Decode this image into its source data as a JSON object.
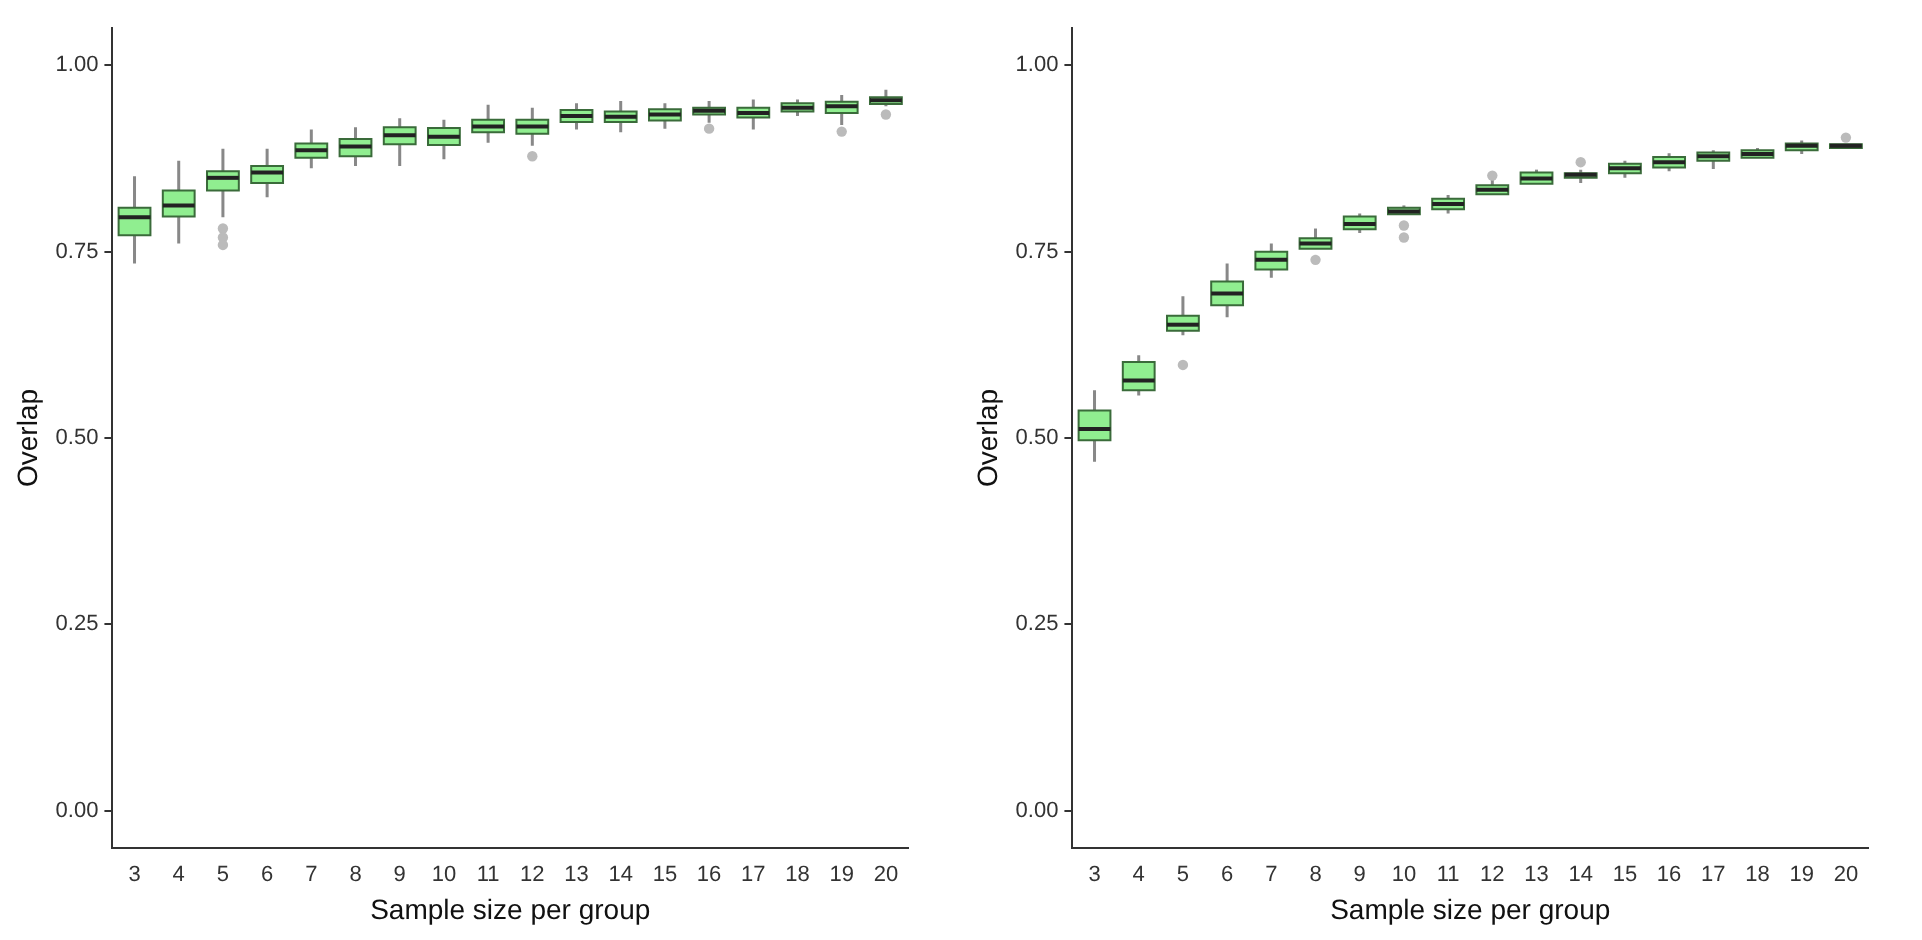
{
  "chart_data": [
    {
      "type": "box",
      "xlabel": "Sample size per group",
      "ylabel": "Overlap",
      "categories": [
        "3",
        "4",
        "5",
        "6",
        "7",
        "8",
        "9",
        "10",
        "11",
        "12",
        "13",
        "14",
        "15",
        "16",
        "17",
        "18",
        "19",
        "20"
      ],
      "ylim": [
        -0.05,
        1.05
      ],
      "yticks": [
        {
          "value": 0,
          "label": "0.00"
        },
        {
          "value": 0.25,
          "label": "0.25"
        },
        {
          "value": 0.5,
          "label": "0.50"
        },
        {
          "value": 0.75,
          "label": "0.75"
        },
        {
          "value": 1,
          "label": "1.00"
        }
      ],
      "grid": false,
      "series": [
        {
          "color": "#90ee90",
          "boxes": [
            {
              "low": 0.734,
              "q1": 0.772,
              "median": 0.796,
              "q3": 0.809,
              "high": 0.851
            },
            {
              "low": 0.761,
              "q1": 0.797,
              "median": 0.812,
              "q3": 0.832,
              "high": 0.872
            },
            {
              "low": 0.796,
              "q1": 0.832,
              "median": 0.849,
              "q3": 0.858,
              "high": 0.888,
              "outliers": [
                0.781,
                0.769,
                0.759
              ]
            },
            {
              "low": 0.823,
              "q1": 0.842,
              "median": 0.856,
              "q3": 0.865,
              "high": 0.888
            },
            {
              "low": 0.862,
              "q1": 0.876,
              "median": 0.886,
              "q3": 0.895,
              "high": 0.914
            },
            {
              "low": 0.865,
              "q1": 0.878,
              "median": 0.891,
              "q3": 0.901,
              "high": 0.917
            },
            {
              "low": 0.865,
              "q1": 0.894,
              "median": 0.906,
              "q3": 0.917,
              "high": 0.929
            },
            {
              "low": 0.874,
              "q1": 0.893,
              "median": 0.904,
              "q3": 0.916,
              "high": 0.927
            },
            {
              "low": 0.896,
              "q1": 0.91,
              "median": 0.918,
              "q3": 0.927,
              "high": 0.947
            },
            {
              "low": 0.892,
              "q1": 0.908,
              "median": 0.918,
              "q3": 0.927,
              "high": 0.943,
              "outliers": [
                0.878
              ]
            },
            {
              "low": 0.914,
              "q1": 0.924,
              "median": 0.932,
              "q3": 0.94,
              "high": 0.949
            },
            {
              "low": 0.91,
              "q1": 0.924,
              "median": 0.931,
              "q3": 0.938,
              "high": 0.952
            },
            {
              "low": 0.915,
              "q1": 0.926,
              "median": 0.934,
              "q3": 0.941,
              "high": 0.949
            },
            {
              "low": 0.923,
              "q1": 0.934,
              "median": 0.939,
              "q3": 0.943,
              "high": 0.952,
              "outliers": [
                0.915
              ]
            },
            {
              "low": 0.914,
              "q1": 0.93,
              "median": 0.936,
              "q3": 0.943,
              "high": 0.954
            },
            {
              "low": 0.932,
              "q1": 0.938,
              "median": 0.943,
              "q3": 0.949,
              "high": 0.954
            },
            {
              "low": 0.92,
              "q1": 0.936,
              "median": 0.945,
              "q3": 0.951,
              "high": 0.96,
              "outliers": [
                0.911
              ]
            },
            {
              "low": 0.945,
              "q1": 0.948,
              "median": 0.953,
              "q3": 0.957,
              "high": 0.967,
              "outliers": [
                0.934
              ]
            }
          ]
        }
      ]
    },
    {
      "type": "box",
      "xlabel": "Sample size per group",
      "ylabel": "Overlap",
      "categories": [
        "3",
        "4",
        "5",
        "6",
        "7",
        "8",
        "9",
        "10",
        "11",
        "12",
        "13",
        "14",
        "15",
        "16",
        "17",
        "18",
        "19",
        "20"
      ],
      "ylim": [
        -0.05,
        1.05
      ],
      "yticks": [
        {
          "value": 0,
          "label": "0.00"
        },
        {
          "value": 0.25,
          "label": "0.25"
        },
        {
          "value": 0.5,
          "label": "0.50"
        },
        {
          "value": 0.75,
          "label": "0.75"
        },
        {
          "value": 1,
          "label": "1.00"
        }
      ],
      "grid": false,
      "series": [
        {
          "color": "#90ee90",
          "boxes": [
            {
              "low": 0.468,
              "q1": 0.497,
              "median": 0.512,
              "q3": 0.537,
              "high": 0.564
            },
            {
              "low": 0.557,
              "q1": 0.564,
              "median": 0.577,
              "q3": 0.602,
              "high": 0.611
            },
            {
              "low": 0.638,
              "q1": 0.644,
              "median": 0.652,
              "q3": 0.664,
              "high": 0.69,
              "outliers": [
                0.598
              ]
            },
            {
              "low": 0.662,
              "q1": 0.678,
              "median": 0.694,
              "q3": 0.71,
              "high": 0.734
            },
            {
              "low": 0.715,
              "q1": 0.726,
              "median": 0.739,
              "q3": 0.75,
              "high": 0.761
            },
            {
              "low": 0.754,
              "q1": 0.754,
              "median": 0.761,
              "q3": 0.768,
              "high": 0.781,
              "outliers": [
                0.739
              ]
            },
            {
              "low": 0.775,
              "q1": 0.78,
              "median": 0.787,
              "q3": 0.797,
              "high": 0.801
            },
            {
              "low": 0.8,
              "q1": 0.8,
              "median": 0.804,
              "q3": 0.809,
              "high": 0.812,
              "outliers": [
                0.785,
                0.769
              ]
            },
            {
              "low": 0.801,
              "q1": 0.807,
              "median": 0.814,
              "q3": 0.821,
              "high": 0.826
            },
            {
              "low": 0.827,
              "q1": 0.827,
              "median": 0.833,
              "q3": 0.839,
              "high": 0.848,
              "outliers": [
                0.852
              ]
            },
            {
              "low": 0.841,
              "q1": 0.841,
              "median": 0.848,
              "q3": 0.856,
              "high": 0.86
            },
            {
              "low": 0.842,
              "q1": 0.849,
              "median": 0.853,
              "q3": 0.855,
              "high": 0.86,
              "outliers": [
                0.87
              ]
            },
            {
              "low": 0.849,
              "q1": 0.855,
              "median": 0.862,
              "q3": 0.868,
              "high": 0.872
            },
            {
              "low": 0.858,
              "q1": 0.863,
              "median": 0.87,
              "q3": 0.877,
              "high": 0.882
            },
            {
              "low": 0.861,
              "q1": 0.872,
              "median": 0.878,
              "q3": 0.883,
              "high": 0.886
            },
            {
              "low": 0.876,
              "q1": 0.876,
              "median": 0.881,
              "q3": 0.886,
              "high": 0.889
            },
            {
              "low": 0.881,
              "q1": 0.886,
              "median": 0.892,
              "q3": 0.895,
              "high": 0.899
            },
            {
              "low": 0.889,
              "q1": 0.889,
              "median": 0.892,
              "q3": 0.894,
              "high": 0.894,
              "outliers": [
                0.903
              ]
            }
          ]
        }
      ]
    }
  ]
}
